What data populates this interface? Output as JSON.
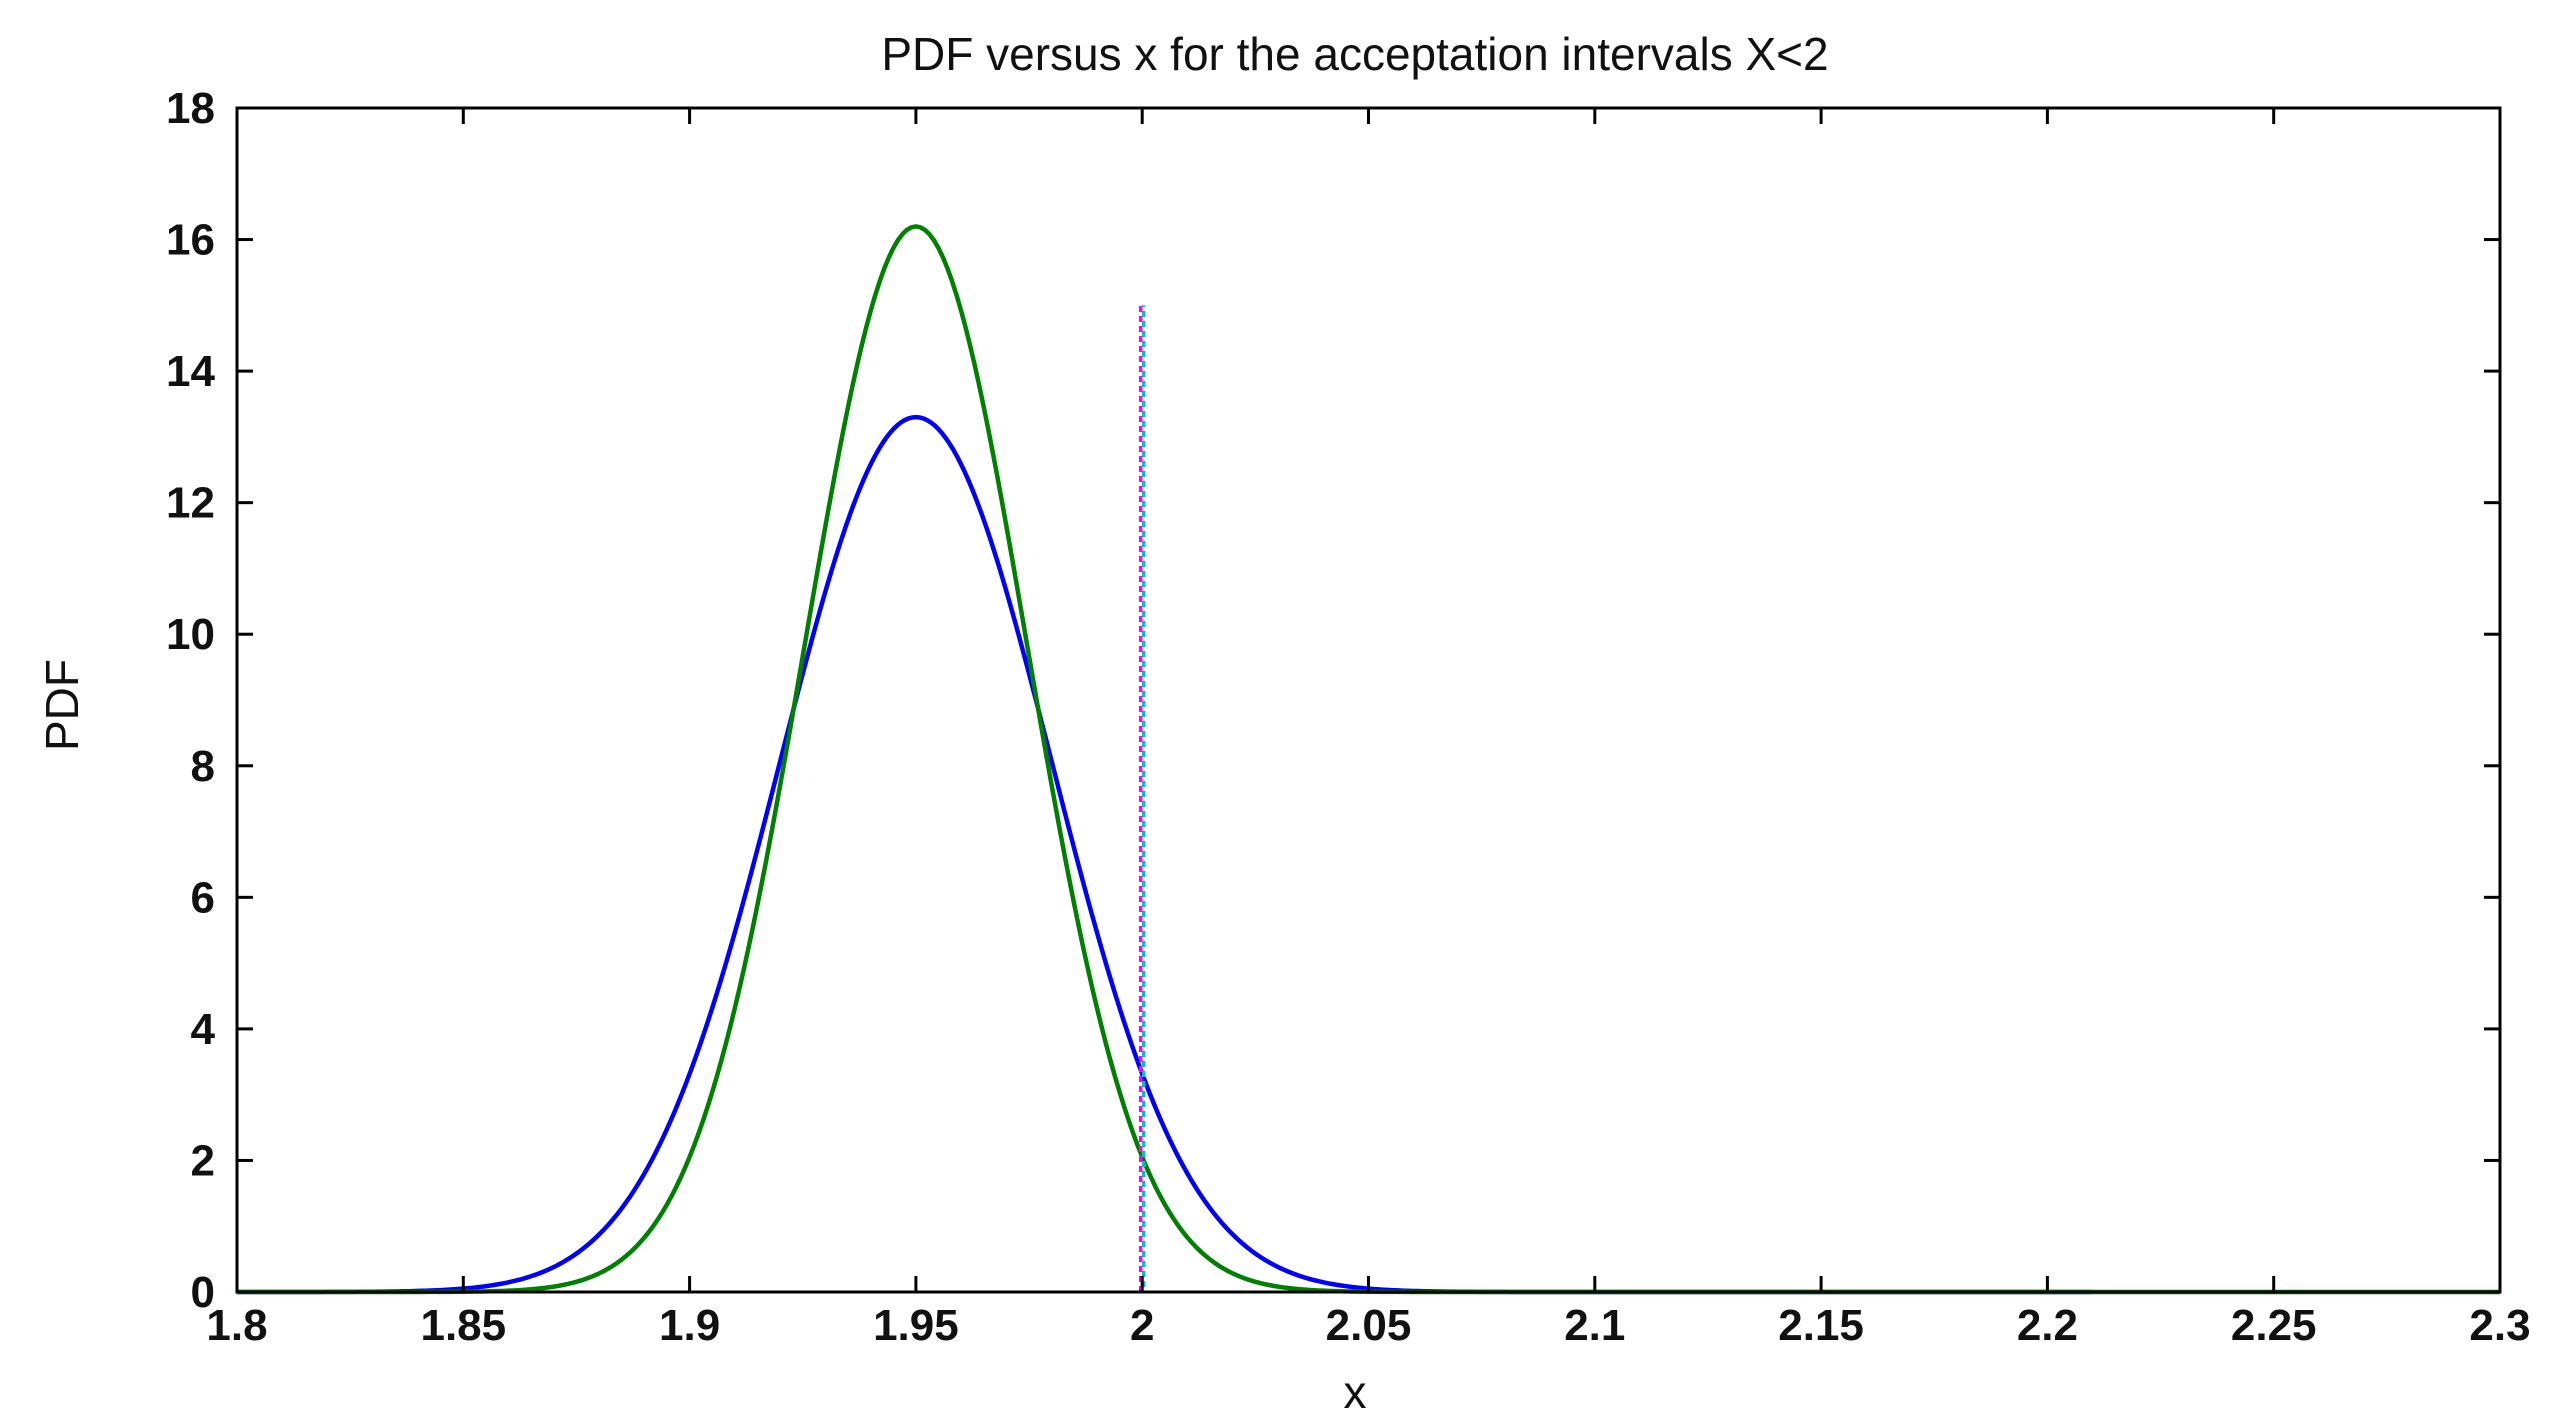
{
  "chart_data": {
    "type": "line",
    "title": "PDF versus x for the acceptation intervals X<2",
    "xlabel": "x",
    "ylabel": "PDF",
    "xlim": [
      1.8,
      2.3
    ],
    "ylim": [
      0,
      18
    ],
    "xticks": [
      "1.8",
      "1.85",
      "1.9",
      "1.95",
      "2",
      "2.05",
      "2.1",
      "2.15",
      "2.2",
      "2.25",
      "2.3"
    ],
    "yticks": [
      "0",
      "2",
      "4",
      "6",
      "8",
      "10",
      "12",
      "14",
      "16",
      "18"
    ],
    "grid": false,
    "legend": "none",
    "series": [
      {
        "color": "#0000ff",
        "distribution": "normal",
        "mean": 1.95,
        "std": 0.03,
        "peak": 13.3,
        "x_range": [
          1.8,
          2.21
        ]
      },
      {
        "color": "#008000",
        "distribution": "normal",
        "mean": 1.95,
        "std": 0.0246,
        "peak": 16.2,
        "x_range": [
          1.8,
          2.3
        ]
      }
    ],
    "threshold": {
      "x": 2.0,
      "y_range": [
        0,
        15
      ],
      "colors": [
        "#ff00ff",
        "#00bfbf"
      ],
      "style": "dotted"
    }
  }
}
